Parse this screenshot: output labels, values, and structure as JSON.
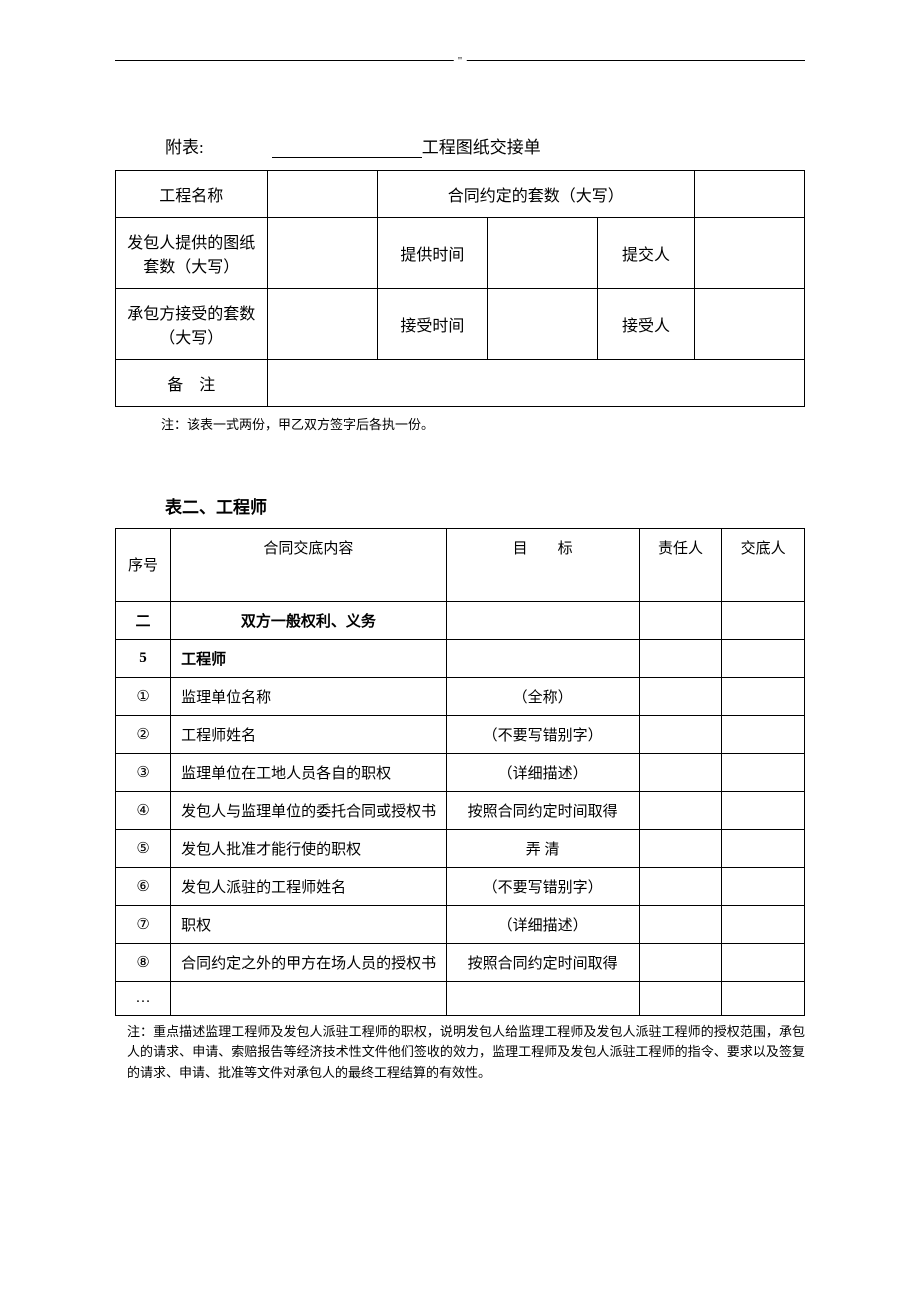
{
  "topMark": "\"",
  "attachment": {
    "label": "附表:",
    "titleSuffix": "工程图纸交接单"
  },
  "table1": {
    "r1c1": "工程名称",
    "r1c3": "合同约定的套数（大写）",
    "r2c1": "发包人提供的图纸套数（大写）",
    "r2c3": "提供时间",
    "r2c5": "提交人",
    "r3c1": "承包方接受的套数（大写）",
    "r3c3": "接受时间",
    "r3c5": "接受人",
    "r4c1": "备　注"
  },
  "note1": "注：该表一式两份，甲乙双方签字后各执一份。",
  "section2Title": "表二、工程师",
  "table2": {
    "head": {
      "c1": "序号",
      "c2": "合同交底内容",
      "c3": "目　　标",
      "c4": "责任人",
      "c5": "交底人"
    },
    "rows": [
      {
        "n": "二",
        "content": "双方一般权利、义务",
        "target": "",
        "boldN": true,
        "boldC": true,
        "centerC": true
      },
      {
        "n": "5",
        "content": "工程师",
        "target": "",
        "boldN": true,
        "boldC": true
      },
      {
        "n": "①",
        "content": "监理单位名称",
        "target": "（全称）"
      },
      {
        "n": "②",
        "content": "工程师姓名",
        "target": "（不要写错别字）"
      },
      {
        "n": "③",
        "content": "监理单位在工地人员各自的职权",
        "target": "（详细描述）"
      },
      {
        "n": "④",
        "content": "发包人与监理单位的委托合同或授权书",
        "target": "按照合同约定时间取得",
        "targetTop": true
      },
      {
        "n": "⑤",
        "content": "发包人批准才能行使的职权",
        "target": "弄  清"
      },
      {
        "n": "⑥",
        "content": "发包人派驻的工程师姓名",
        "target": "（不要写错别字）"
      },
      {
        "n": "⑦",
        "content": "职权",
        "target": "（详细描述）"
      },
      {
        "n": "⑧",
        "content": "合同约定之外的甲方在场人员的授权书",
        "target": "按照合同约定时间取得",
        "targetTop": true
      },
      {
        "n": "…",
        "content": "",
        "target": ""
      }
    ]
  },
  "note2": "注：重点描述监理工程师及发包人派驻工程师的职权，说明发包人给监理工程师及发包人派驻工程师的授权范围，承包人的请求、申请、索赔报告等经济技术性文件他们签收的效力，监理工程师及发包人派驻工程师的指令、要求以及签复的请求、申请、批准等文件对承包人的最终工程结算的有效性。"
}
